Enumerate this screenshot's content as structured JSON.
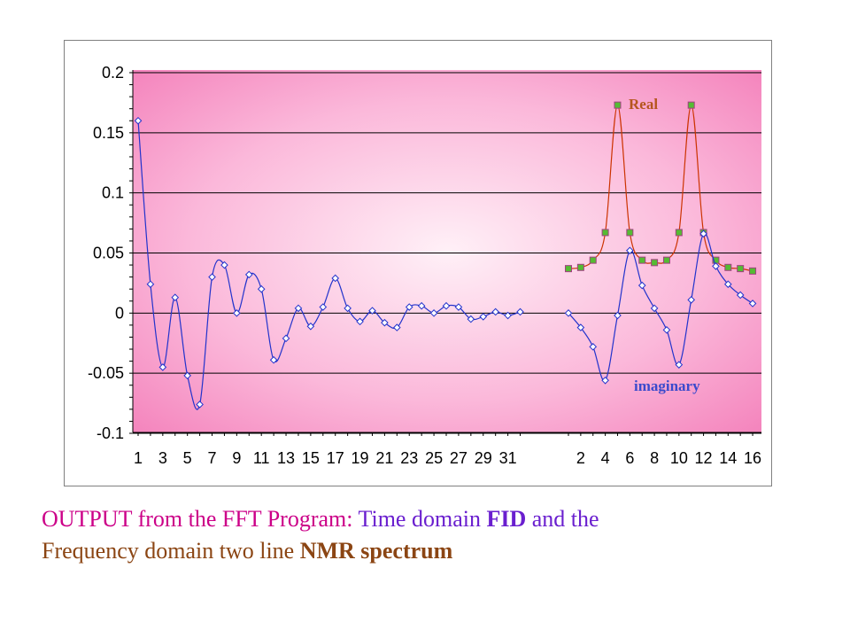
{
  "chart_data": {
    "type": "line",
    "ylim": [
      -0.1,
      0.2
    ],
    "y_ticks": [
      "0.2",
      "0.15",
      "0.1",
      "0.05",
      "0",
      "-0.05",
      "-0.1"
    ],
    "grid": true,
    "background": "pink radial gradient",
    "panels": [
      {
        "name": "Time domain FID",
        "x": [
          1,
          2,
          3,
          4,
          5,
          6,
          7,
          8,
          9,
          10,
          11,
          12,
          13,
          14,
          15,
          16,
          17,
          18,
          19,
          20,
          21,
          22,
          23,
          24,
          25,
          26,
          27,
          28,
          29,
          30,
          31,
          32
        ],
        "x_tick_labels": [
          "1",
          "3",
          "5",
          "7",
          "9",
          "11",
          "13",
          "15",
          "17",
          "19",
          "21",
          "23",
          "25",
          "27",
          "29",
          "31"
        ],
        "series": [
          {
            "color": "#2233cc",
            "marker": "diamond",
            "values": [
              0.16,
              0.024,
              -0.045,
              0.013,
              -0.052,
              -0.076,
              0.03,
              0.04,
              0.0,
              0.032,
              0.02,
              -0.039,
              -0.021,
              0.004,
              -0.011,
              0.005,
              0.029,
              0.004,
              -0.007,
              0.002,
              -0.008,
              -0.012,
              0.005,
              0.006,
              0.0,
              0.006,
              0.005,
              -0.005,
              -0.003,
              0.001,
              -0.002,
              0.001
            ]
          }
        ]
      },
      {
        "name": "Frequency domain NMR spectrum",
        "x": [
          1,
          2,
          3,
          4,
          5,
          6,
          7,
          8,
          9,
          10,
          11,
          12,
          13,
          14,
          15,
          16
        ],
        "x_tick_labels": [
          "2",
          "4",
          "6",
          "8",
          "10",
          "12",
          "14",
          "16"
        ],
        "series": [
          {
            "name": "Real",
            "color": "#cc3300",
            "marker_color": "#55bb33",
            "marker": "square",
            "values": [
              0.037,
              0.038,
              0.044,
              0.067,
              0.173,
              0.067,
              0.044,
              0.042,
              0.044,
              0.067,
              0.173,
              0.067,
              0.044,
              0.038,
              0.037,
              0.035
            ]
          },
          {
            "name": "imaginary",
            "color": "#2233cc",
            "marker": "diamond",
            "values": [
              0.0,
              -0.012,
              -0.028,
              -0.056,
              -0.002,
              0.052,
              0.023,
              0.004,
              -0.014,
              -0.043,
              0.011,
              0.066,
              0.039,
              0.024,
              0.015,
              0.008
            ]
          }
        ]
      }
    ]
  },
  "caption": {
    "part1": "OUTPUT from the FFT Program:  ",
    "part2": "Time domain ",
    "part3": "FID",
    "part4": " and the",
    "part5": "Frequency domain two line ",
    "part6": "NMR spectrum"
  }
}
